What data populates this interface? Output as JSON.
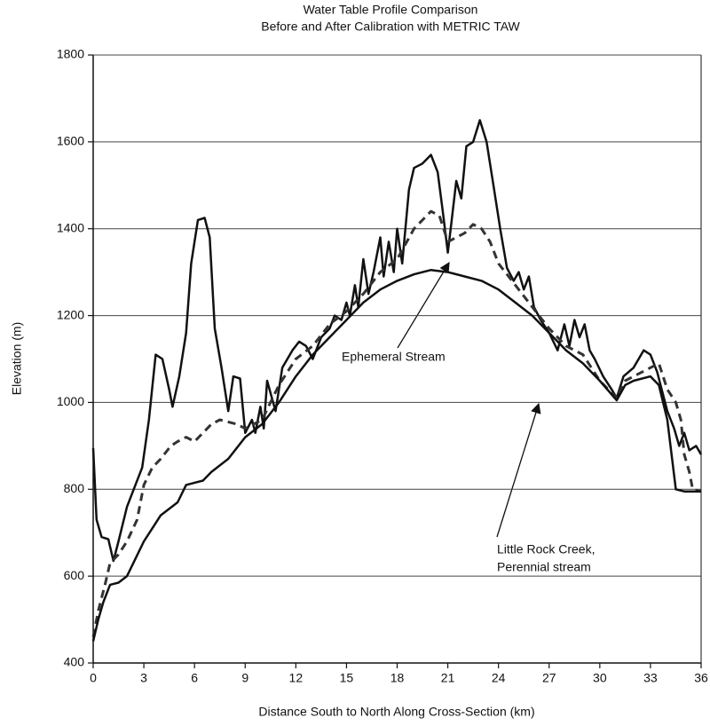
{
  "chart_data": {
    "type": "line",
    "title": "Water Table Profile Comparison",
    "subtitle": "Before and After Calibration with METRIC TAW",
    "x_label": "Distance South to North Along Cross-Section (km)",
    "y_label": "Elevation (m)",
    "xlim": [
      0,
      36
    ],
    "ylim": [
      400,
      1800
    ],
    "xticks": [
      0,
      3,
      6,
      9,
      12,
      15,
      18,
      21,
      24,
      27,
      30,
      33,
      36
    ],
    "yticks": [
      400,
      600,
      800,
      1000,
      1200,
      1400,
      1600,
      1800
    ],
    "grid": true,
    "annotations": [
      "Ephemeral Stream",
      "Little Rock Creek,",
      "Perennial stream"
    ],
    "series": [
      {
        "color": "#111111",
        "style": "solid",
        "x": [
          0,
          0.2,
          0.5,
          0.9,
          1.2,
          1.5,
          2,
          2.4,
          2.9,
          3.3,
          3.7,
          4.1,
          4.5,
          4.7,
          5.1,
          5.5,
          5.8,
          6.2,
          6.6,
          6.9,
          7.2,
          7.6,
          8.0,
          8.3,
          8.7,
          9.0,
          9.4,
          9.6,
          9.9,
          10.1,
          10.3,
          10.8,
          11.2,
          11.8,
          12.2,
          12.6,
          13,
          13.5,
          14,
          14.3,
          14.7,
          15,
          15.2,
          15.5,
          15.7,
          16,
          16.3,
          16.6,
          17,
          17.2,
          17.5,
          17.8,
          18,
          18.3,
          18.7,
          19,
          19.5,
          20,
          20.4,
          20.7,
          21,
          21.2,
          21.5,
          21.8,
          22.1,
          22.5,
          22.9,
          23.3,
          23.7,
          24.1,
          24.5,
          24.9,
          25.2,
          25.5,
          25.8,
          26.1,
          26.5,
          27,
          27.5,
          27.9,
          28.2,
          28.5,
          28.8,
          29.1,
          29.4,
          29.7,
          30.2,
          30.7,
          31,
          31.4,
          32,
          32.6,
          33,
          33.4,
          34,
          34.4,
          34.7,
          35,
          35.3,
          35.7,
          36
        ],
        "values": [
          895,
          730,
          690,
          685,
          635,
          680,
          760,
          800,
          850,
          960,
          1110,
          1100,
          1030,
          990,
          1060,
          1160,
          1320,
          1420,
          1425,
          1380,
          1170,
          1080,
          980,
          1060,
          1055,
          930,
          960,
          930,
          990,
          940,
          1050,
          980,
          1080,
          1120,
          1140,
          1130,
          1100,
          1150,
          1170,
          1200,
          1190,
          1230,
          1200,
          1270,
          1220,
          1330,
          1250,
          1300,
          1380,
          1290,
          1370,
          1300,
          1400,
          1320,
          1490,
          1540,
          1550,
          1570,
          1530,
          1440,
          1345,
          1410,
          1510,
          1470,
          1590,
          1600,
          1650,
          1600,
          1500,
          1400,
          1310,
          1280,
          1300,
          1260,
          1290,
          1220,
          1190,
          1160,
          1120,
          1180,
          1130,
          1190,
          1150,
          1180,
          1120,
          1100,
          1060,
          1030,
          1010,
          1060,
          1080,
          1120,
          1110,
          1070,
          980,
          940,
          900,
          930,
          890,
          900,
          880
        ]
      },
      {
        "color": "#333333",
        "style": "dashed",
        "x": [
          0,
          0.3,
          0.7,
          1,
          1.5,
          2,
          2.6,
          3,
          3.5,
          4,
          4.6,
          5,
          5.5,
          6,
          6.5,
          7,
          7.5,
          8,
          8.5,
          9,
          9.5,
          10,
          10.5,
          11,
          11.5,
          12,
          13,
          14,
          15,
          16,
          17,
          18,
          19,
          20,
          20.5,
          21,
          21.5,
          22,
          22.5,
          23,
          23.5,
          24,
          25,
          26,
          27,
          28,
          29,
          30,
          31,
          31.5,
          32,
          33,
          33.5,
          34,
          34.5,
          34.8,
          35,
          35.3,
          35.5,
          36
        ],
        "values": [
          460,
          520,
          580,
          630,
          650,
          680,
          730,
          810,
          850,
          870,
          900,
          910,
          920,
          910,
          930,
          950,
          960,
          955,
          950,
          940,
          950,
          960,
          1000,
          1040,
          1070,
          1100,
          1130,
          1180,
          1210,
          1250,
          1300,
          1330,
          1400,
          1440,
          1430,
          1370,
          1380,
          1390,
          1410,
          1400,
          1370,
          1320,
          1270,
          1220,
          1170,
          1130,
          1110,
          1050,
          1010,
          1050,
          1060,
          1080,
          1090,
          1030,
          1000,
          960,
          880,
          840,
          800,
          795
        ]
      },
      {
        "color": "#111111",
        "style": "solid",
        "x": [
          0,
          0.3,
          0.6,
          1,
          1.5,
          2,
          2.5,
          3,
          3.5,
          4,
          5,
          5.5,
          6,
          6.5,
          7,
          8,
          9,
          10,
          11,
          12,
          13,
          14,
          15,
          16,
          17,
          18,
          19,
          20,
          21,
          22,
          23,
          24,
          25,
          26,
          27,
          28,
          29,
          30,
          31,
          31.5,
          32,
          33,
          33.5,
          34,
          34.5,
          35,
          36
        ],
        "values": [
          450,
          500,
          540,
          580,
          585,
          600,
          640,
          680,
          710,
          740,
          770,
          810,
          815,
          820,
          840,
          870,
          920,
          950,
          1000,
          1060,
          1110,
          1150,
          1190,
          1230,
          1260,
          1280,
          1295,
          1305,
          1300,
          1290,
          1280,
          1260,
          1230,
          1200,
          1160,
          1120,
          1090,
          1050,
          1005,
          1040,
          1050,
          1060,
          1040,
          960,
          800,
          795,
          795
        ]
      }
    ]
  }
}
